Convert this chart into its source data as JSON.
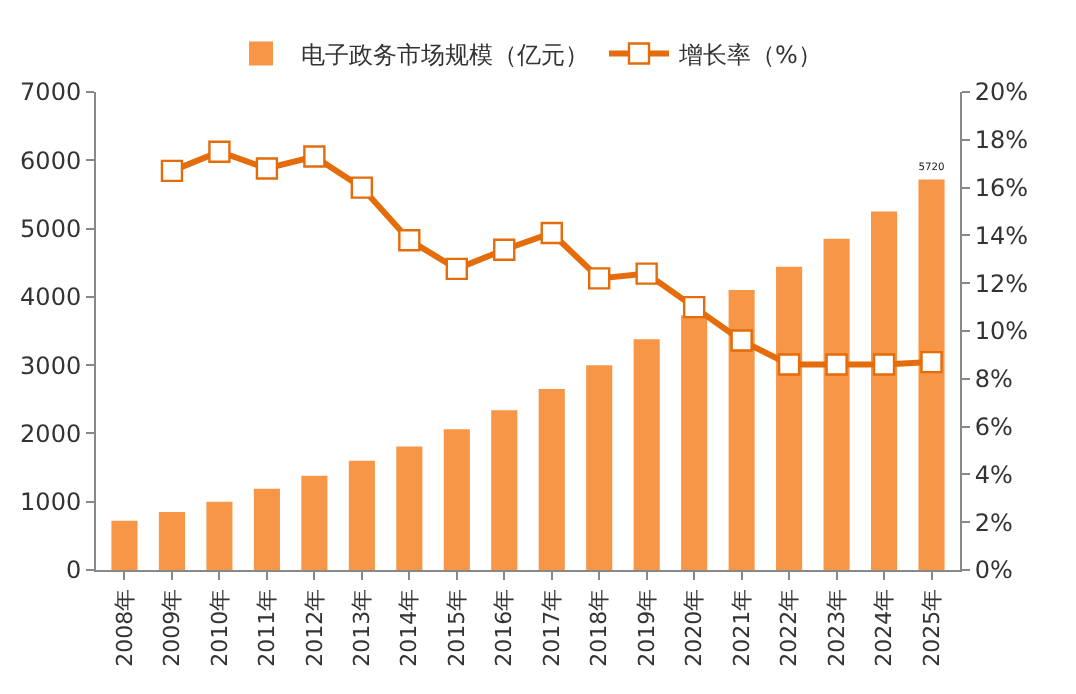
{
  "chart_data": {
    "type": "bar",
    "categories": [
      "2008年",
      "2009年",
      "2010年",
      "2011年",
      "2012年",
      "2013年",
      "2014年",
      "2015年",
      "2016年",
      "2017年",
      "2018年",
      "2019年",
      "2020年",
      "2021年",
      "2022年",
      "2023年",
      "2024年",
      "2025年"
    ],
    "series": [
      {
        "name": "电子政务市场规模（亿元）",
        "color": "#f79646",
        "values": [
          720,
          850,
          1000,
          1190,
          1380,
          1600,
          1810,
          2060,
          2340,
          2650,
          3000,
          3380,
          3730,
          4100,
          4440,
          4850,
          5250,
          5720
        ],
        "value_labels": [
          null,
          null,
          null,
          null,
          null,
          null,
          null,
          null,
          null,
          null,
          null,
          null,
          null,
          null,
          null,
          null,
          null,
          "5720"
        ]
      },
      {
        "name": "增长率（%）",
        "type": "line",
        "axis": "y2",
        "color": "#e46c0a",
        "marker": "square",
        "values": [
          null,
          16.7,
          17.5,
          16.8,
          17.3,
          16.0,
          13.8,
          12.6,
          13.4,
          14.1,
          12.2,
          12.4,
          11.0,
          9.6,
          8.6,
          8.6,
          8.6,
          8.7
        ]
      }
    ],
    "ylim": [
      0,
      7000
    ],
    "yticks": [
      0,
      1000,
      2000,
      3000,
      4000,
      5000,
      6000,
      7000
    ],
    "y2lim": [
      0,
      20
    ],
    "y2ticks": [
      {
        "value": 0,
        "label": "0%"
      },
      {
        "value": 2,
        "label": "2%"
      },
      {
        "value": 4,
        "label": "4%"
      },
      {
        "value": 6,
        "label": "6%"
      },
      {
        "value": 8,
        "label": "8%"
      },
      {
        "value": 10,
        "label": "10%"
      },
      {
        "value": 12,
        "label": "12%"
      },
      {
        "value": 14,
        "label": "14%"
      },
      {
        "value": 16,
        "label": "16%"
      },
      {
        "value": 18,
        "label": "18%"
      },
      {
        "value": 20,
        "label": "20%"
      }
    ],
    "grid": false,
    "legend": "top"
  }
}
